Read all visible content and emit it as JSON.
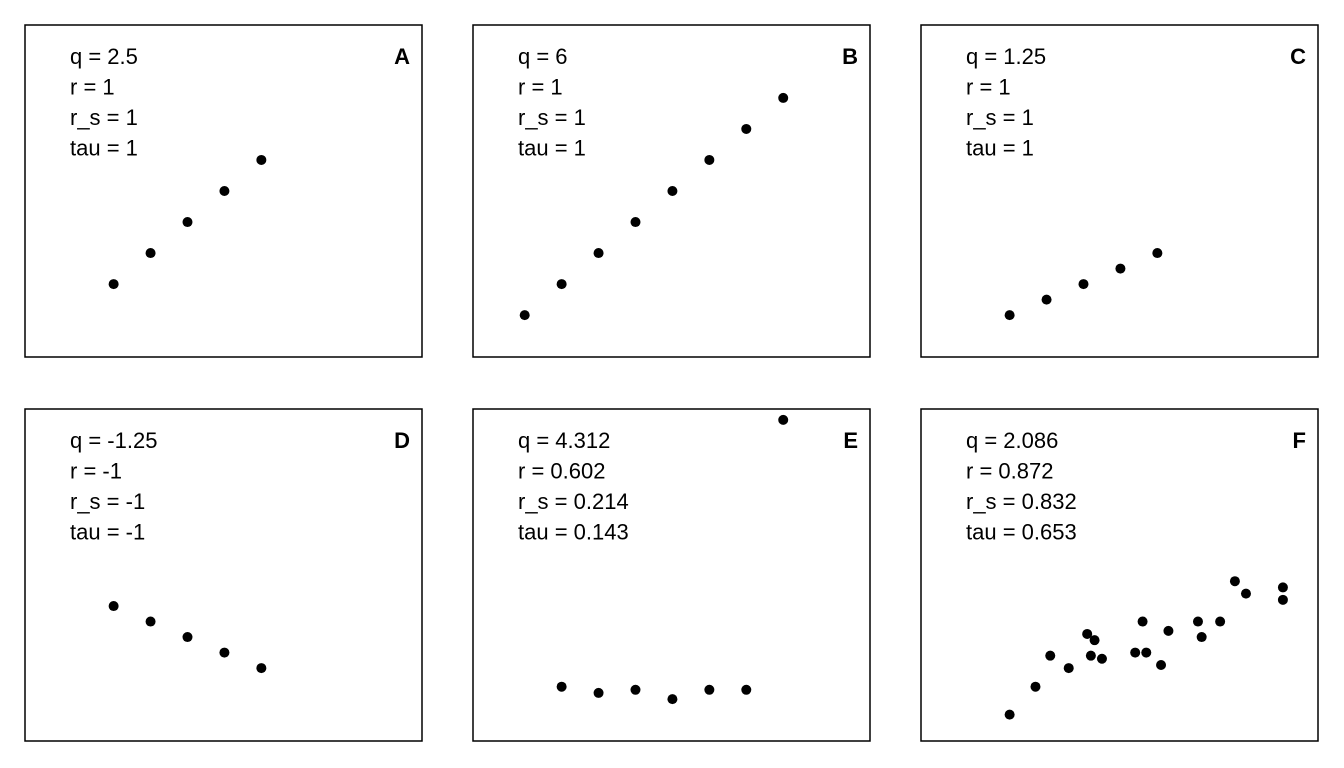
{
  "chart_data": [
    {
      "type": "scatter",
      "panel_label": "A",
      "annotations": [
        "q = 2.5",
        "r = 1",
        "r_s = 1",
        "tau = 1"
      ],
      "x": [
        1,
        2,
        3,
        4,
        5
      ],
      "y": [
        1,
        2,
        3,
        4,
        5
      ],
      "xlim": [
        -1.4,
        9.35
      ],
      "ylim": [
        -1.35,
        9.35
      ],
      "color": "#000000"
    },
    {
      "type": "scatter",
      "panel_label": "B",
      "annotations": [
        "q = 6",
        "r = 1",
        "r_s = 1",
        "tau = 1"
      ],
      "x": [
        0,
        1,
        2,
        3,
        4,
        5,
        6,
        7
      ],
      "y": [
        0,
        1,
        2,
        3,
        4,
        5,
        6,
        7
      ],
      "xlim": [
        -1.4,
        9.35
      ],
      "ylim": [
        -1.35,
        9.35
      ],
      "color": "#000000"
    },
    {
      "type": "scatter",
      "panel_label": "C",
      "annotations": [
        "q = 1.25",
        "r = 1",
        "r_s = 1",
        "tau = 1"
      ],
      "x": [
        1,
        2,
        3,
        4,
        5
      ],
      "y": [
        0,
        0.5,
        1,
        1.5,
        2
      ],
      "xlim": [
        -1.4,
        9.35
      ],
      "ylim": [
        -1.35,
        9.35
      ],
      "color": "#000000"
    },
    {
      "type": "scatter",
      "panel_label": "D",
      "annotations": [
        "q = -1.25",
        "r = -1",
        "r_s = -1",
        "tau = -1"
      ],
      "x": [
        1,
        2,
        3,
        4,
        5
      ],
      "y": [
        3,
        2.5,
        2,
        1.5,
        1
      ],
      "xlim": [
        -1.4,
        9.35
      ],
      "ylim": [
        -1.35,
        9.35
      ],
      "color": "#000000"
    },
    {
      "type": "scatter",
      "panel_label": "E",
      "annotations": [
        "q = 4.312",
        "r = 0.602",
        "r_s = 0.214",
        "tau = 0.143"
      ],
      "x": [
        1,
        2,
        3,
        4,
        5,
        6,
        7
      ],
      "y": [
        0.4,
        0.2,
        0.3,
        0,
        0.3,
        0.3,
        9
      ],
      "xlim": [
        -1.4,
        9.35
      ],
      "ylim": [
        -1.35,
        9.35
      ],
      "color": "#000000"
    },
    {
      "type": "scatter",
      "panel_label": "F",
      "annotations": [
        "q = 2.086",
        "r = 0.872",
        "r_s = 0.832",
        "tau = 0.653"
      ],
      "x": [
        1,
        1.7,
        2.1,
        2.6,
        3.1,
        3.3,
        3.2,
        3.5,
        4.4,
        4.7,
        4.6,
        5.1,
        5.3,
        6.1,
        6.2,
        6.7,
        7.1,
        7.4,
        8.4,
        8.4
      ],
      "y": [
        -0.5,
        0.4,
        1.4,
        1,
        2.1,
        1.9,
        1.4,
        1.3,
        1.5,
        1.5,
        2.5,
        1.1,
        2.2,
        2.5,
        2,
        2.5,
        3.8,
        3.4,
        3.2,
        3.6
      ],
      "xlim": [
        -1.4,
        9.35
      ],
      "ylim": [
        -1.35,
        9.35
      ],
      "color": "#000000"
    }
  ]
}
